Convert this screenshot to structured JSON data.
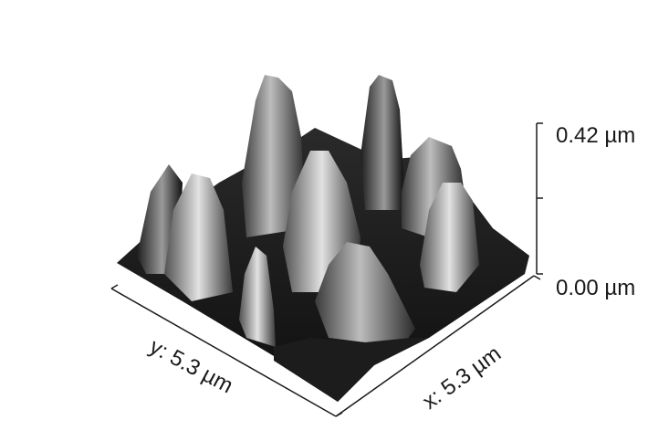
{
  "scale": {
    "z_max_label": "0.42 µm",
    "z_min_label": "0.00 µm"
  },
  "axes": {
    "y_label": "y: 5.3 µm",
    "x_label": "x: 5.3 µm"
  },
  "colors": {
    "background": "#ffffff",
    "axis": "#1a1a1a"
  }
}
